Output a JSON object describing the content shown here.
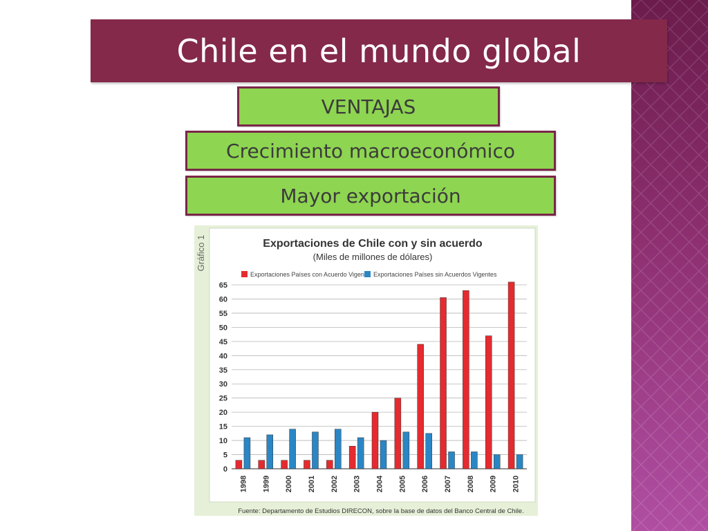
{
  "slide": {
    "title": "Chile en el mundo global",
    "labels": [
      "VENTAJAS",
      "Crecimiento macroeconómico",
      "Mayor exportación"
    ]
  },
  "colors": {
    "title_bg": "#84294a",
    "pill_bg": "#8ed551",
    "pill_border": "#7a2648",
    "series_con": "#e52b2f",
    "series_sin": "#2a86c4"
  },
  "chart_data": {
    "type": "bar",
    "side_label": "Gráfico 1",
    "title": "Exportaciones de Chile con y sin acuerdo",
    "subtitle": "(Miles de millones de dólares)",
    "source": "Fuente: Departamento de Estudios DIRECON, sobre la base de datos del Banco Central de Chile.",
    "categories": [
      "1998",
      "1999",
      "2000",
      "2001",
      "2002",
      "2003",
      "2004",
      "2005",
      "2006",
      "2007",
      "2008",
      "2009",
      "2010"
    ],
    "series": [
      {
        "name": "Exportaciones Países con Acuerdo Vigente",
        "color": "#e52b2f",
        "values": [
          3,
          3,
          3,
          3,
          3,
          8,
          20,
          25,
          44,
          60.5,
          63,
          47,
          66
        ]
      },
      {
        "name": "Exportaciones Países sin Acuerdos Vigentes",
        "color": "#2a86c4",
        "values": [
          11,
          12,
          14,
          13,
          14,
          11,
          10,
          13,
          12.5,
          6,
          6,
          5,
          5
        ]
      }
    ],
    "yticks": [
      0,
      5,
      10,
      15,
      20,
      25,
      30,
      35,
      40,
      45,
      50,
      55,
      60,
      65
    ],
    "ylim": [
      0,
      65
    ],
    "grid": true,
    "legend_position": "top"
  }
}
